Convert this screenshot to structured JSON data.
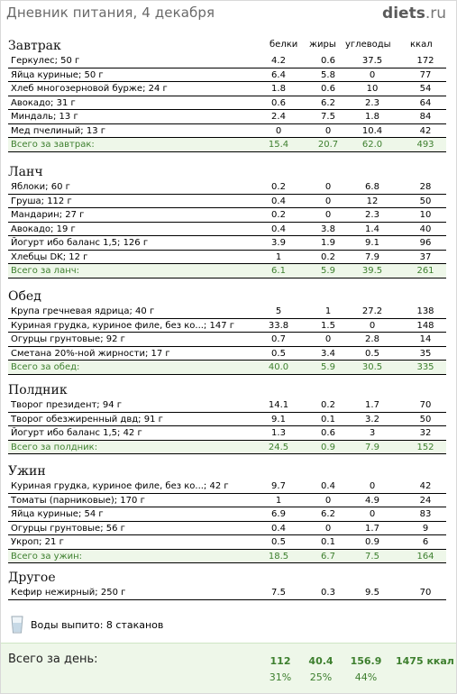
{
  "header": {
    "title": "Дневник питания, 4 декабря",
    "logo": "diets",
    "logo_suffix": ".ru"
  },
  "columns": {
    "protein": "белки",
    "fat": "жиры",
    "carbs": "углеводы",
    "kcal": "ккал"
  },
  "sections": [
    {
      "title": "Завтрак",
      "items": [
        {
          "name": "Геркулес; 50 г",
          "p": "4.2",
          "f": "0.6",
          "c": "37.5",
          "k": "172"
        },
        {
          "name": "Яйца куриные; 50 г",
          "p": "6.4",
          "f": "5.8",
          "c": "0",
          "k": "77"
        },
        {
          "name": "Хлеб многозерновой бурже; 24 г",
          "p": "1.8",
          "f": "0.6",
          "c": "10",
          "k": "54"
        },
        {
          "name": "Авокадо; 31 г",
          "p": "0.6",
          "f": "6.2",
          "c": "2.3",
          "k": "64"
        },
        {
          "name": "Миндаль; 13 г",
          "p": "2.4",
          "f": "7.5",
          "c": "1.8",
          "k": "84"
        },
        {
          "name": "Мед пчелиный; 13 г",
          "p": "0",
          "f": "0",
          "c": "10.4",
          "k": "42"
        }
      ],
      "total": {
        "label": "Всего за завтрак:",
        "p": "15.4",
        "f": "20.7",
        "c": "62.0",
        "k": "493"
      }
    },
    {
      "title": "Ланч",
      "items": [
        {
          "name": "Яблоки; 60 г",
          "p": "0.2",
          "f": "0",
          "c": "6.8",
          "k": "28"
        },
        {
          "name": "Груша; 112 г",
          "p": "0.4",
          "f": "0",
          "c": "12",
          "k": "50"
        },
        {
          "name": "Мандарин; 27 г",
          "p": "0.2",
          "f": "0",
          "c": "2.3",
          "k": "10"
        },
        {
          "name": "Авокадо; 19 г",
          "p": "0.4",
          "f": "3.8",
          "c": "1.4",
          "k": "40"
        },
        {
          "name": "Йогурт ибо баланс 1,5; 126 г",
          "p": "3.9",
          "f": "1.9",
          "c": "9.1",
          "k": "96"
        },
        {
          "name": "Хлебцы DK; 12 г",
          "p": "1",
          "f": "0.2",
          "c": "7.9",
          "k": "37"
        }
      ],
      "total": {
        "label": "Всего за ланч:",
        "p": "6.1",
        "f": "5.9",
        "c": "39.5",
        "k": "261"
      }
    },
    {
      "title": "Обед",
      "items": [
        {
          "name": "Крупа гречневая ядрица; 40 г",
          "p": "5",
          "f": "1",
          "c": "27.2",
          "k": "138"
        },
        {
          "name": "Куриная грудка, куриное филе, без ко...; 147 г",
          "p": "33.8",
          "f": "1.5",
          "c": "0",
          "k": "148"
        },
        {
          "name": "Огурцы грунтовые; 92 г",
          "p": "0.7",
          "f": "0",
          "c": "2.8",
          "k": "14"
        },
        {
          "name": "Сметана 20%-ной жирности; 17 г",
          "p": "0.5",
          "f": "3.4",
          "c": "0.5",
          "k": "35"
        }
      ],
      "total": {
        "label": "Всего за обед:",
        "p": "40.0",
        "f": "5.9",
        "c": "30.5",
        "k": "335"
      }
    },
    {
      "title": "Полдник",
      "items": [
        {
          "name": "Творог президент; 94 г",
          "p": "14.1",
          "f": "0.2",
          "c": "1.7",
          "k": "70"
        },
        {
          "name": "Творог обезжиренный двд; 91 г",
          "p": "9.1",
          "f": "0.1",
          "c": "3.2",
          "k": "50"
        },
        {
          "name": "Йогурт ибо баланс 1,5; 42 г",
          "p": "1.3",
          "f": "0.6",
          "c": "3",
          "k": "32"
        }
      ],
      "total": {
        "label": "Всего за полдник:",
        "p": "24.5",
        "f": "0.9",
        "c": "7.9",
        "k": "152"
      }
    },
    {
      "title": "Ужин",
      "items": [
        {
          "name": "Куриная грудка, куриное филе, без ко...; 42 г",
          "p": "9.7",
          "f": "0.4",
          "c": "0",
          "k": "42"
        },
        {
          "name": "Томаты (парниковые); 170 г",
          "p": "1",
          "f": "0",
          "c": "4.9",
          "k": "24"
        },
        {
          "name": "Яйца куриные; 54 г",
          "p": "6.9",
          "f": "6.2",
          "c": "0",
          "k": "83"
        },
        {
          "name": "Огурцы грунтовые; 56 г",
          "p": "0.4",
          "f": "0",
          "c": "1.7",
          "k": "9"
        },
        {
          "name": "Укроп; 21 г",
          "p": "0.5",
          "f": "0.1",
          "c": "0.9",
          "k": "6"
        }
      ],
      "total": {
        "label": "Всего за ужин:",
        "p": "18.5",
        "f": "6.7",
        "c": "7.5",
        "k": "164"
      }
    },
    {
      "title": "Другое",
      "items": [
        {
          "name": "Кефир нежирный; 250 г",
          "p": "7.5",
          "f": "0.3",
          "c": "9.5",
          "k": "70"
        }
      ],
      "total": null
    }
  ],
  "water": {
    "text": "Воды выпито: 8 стаканов",
    "icon": "glass-icon"
  },
  "day_total": {
    "label": "Всего за день:",
    "p": "112",
    "f": "40.4",
    "c": "156.9",
    "kcal": "1475 ккал",
    "p_pct": "31%",
    "f_pct": "25%",
    "c_pct": "44%"
  },
  "colors": {
    "total_bg": "#eef7e9",
    "total_text": "#3d7f2e"
  }
}
